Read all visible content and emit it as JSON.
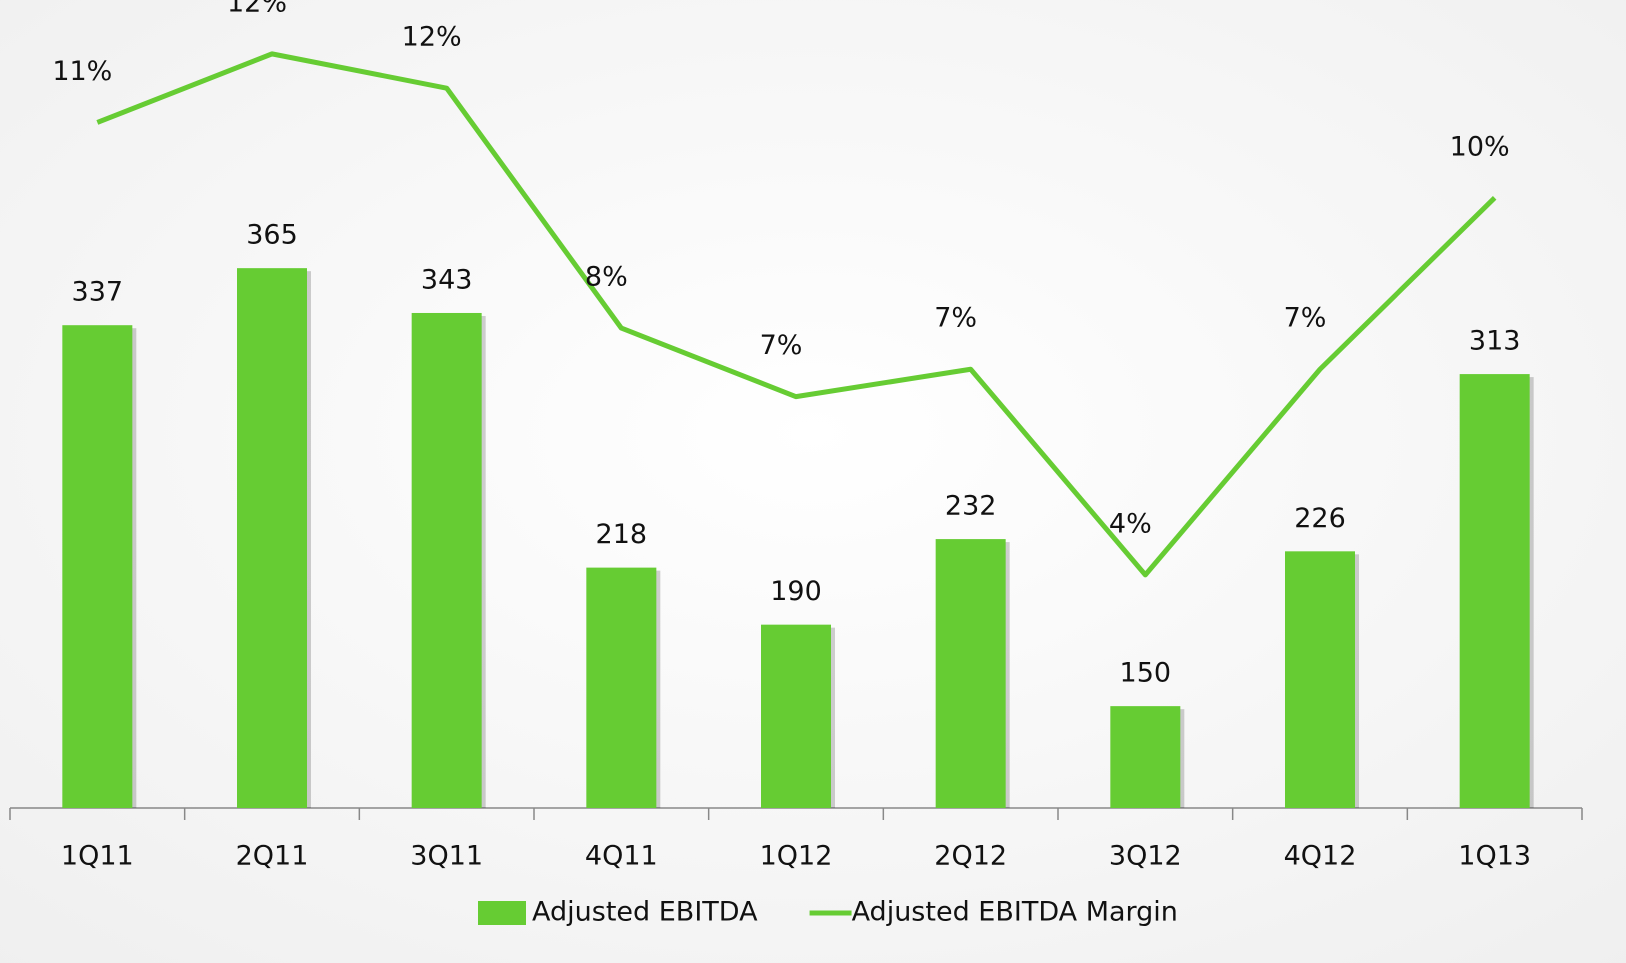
{
  "chart_data": {
    "type": "bar",
    "categories": [
      "1Q11",
      "2Q11",
      "3Q11",
      "4Q11",
      "1Q12",
      "2Q12",
      "3Q12",
      "4Q12",
      "1Q13"
    ],
    "series": [
      {
        "name": "Adjusted EBITDA",
        "type": "bar",
        "color": "#66cc33",
        "values": [
          337,
          365,
          343,
          218,
          190,
          232,
          150,
          226,
          313
        ]
      },
      {
        "name": "Adjusted EBITDA Margin",
        "type": "line",
        "axis": "y2",
        "color": "#66cc33",
        "values": [
          11.0,
          12.0,
          11.5,
          8.0,
          7.0,
          7.4,
          4.4,
          7.4,
          9.9
        ],
        "value_labels": [
          "11%",
          "12%",
          "12%",
          "8%",
          "7%",
          "7%",
          "4%",
          "7%",
          "10%"
        ]
      }
    ],
    "ylim": [
      100,
      450
    ],
    "y2lim": [
      1,
      11.4
    ],
    "legend": "bottom"
  }
}
